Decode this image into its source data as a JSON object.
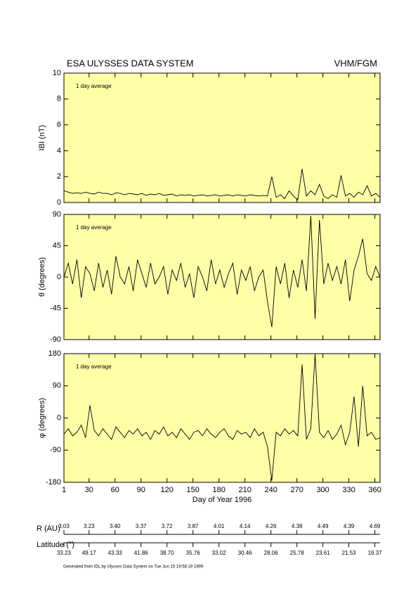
{
  "header": {
    "title": "ESA ULYSSES DATA SYSTEM",
    "instrument": "VHM/FGM"
  },
  "chart_data": [
    {
      "type": "line",
      "annotation": "1 day average",
      "ylabel": "IBI (nT)",
      "color": "#000000",
      "xlim": [
        1,
        366
      ],
      "xticks": [
        1,
        30,
        60,
        90,
        120,
        150,
        180,
        210,
        240,
        270,
        300,
        330,
        360
      ],
      "ylim": [
        0,
        10
      ],
      "yticks": [
        0,
        2,
        4,
        6,
        8,
        10
      ],
      "x": [
        1,
        6,
        11,
        16,
        21,
        26,
        31,
        36,
        41,
        46,
        51,
        56,
        61,
        66,
        71,
        76,
        81,
        86,
        91,
        96,
        101,
        106,
        111,
        116,
        121,
        126,
        131,
        136,
        141,
        146,
        151,
        156,
        161,
        166,
        171,
        176,
        181,
        186,
        191,
        196,
        201,
        206,
        211,
        216,
        221,
        226,
        231,
        236,
        241,
        246,
        251,
        256,
        261,
        266,
        271,
        276,
        281,
        286,
        291,
        296,
        301,
        306,
        311,
        316,
        321,
        326,
        331,
        336,
        341,
        346,
        351,
        356,
        361,
        366
      ],
      "values": [
        0.9,
        0.8,
        0.7,
        0.75,
        0.7,
        0.8,
        0.7,
        0.65,
        0.8,
        0.7,
        0.7,
        0.6,
        0.75,
        0.7,
        0.6,
        0.7,
        0.65,
        0.6,
        0.7,
        0.55,
        0.65,
        0.6,
        0.7,
        0.55,
        0.6,
        0.65,
        0.5,
        0.6,
        0.55,
        0.6,
        0.5,
        0.55,
        0.6,
        0.5,
        0.55,
        0.6,
        0.5,
        0.55,
        0.6,
        0.5,
        0.6,
        0.55,
        0.5,
        0.6,
        0.55,
        0.5,
        0.55,
        0.5,
        2.0,
        0.4,
        0.6,
        0.3,
        0.9,
        0.5,
        0.2,
        2.6,
        0.5,
        0.9,
        0.6,
        1.4,
        0.5,
        0.3,
        0.6,
        0.4,
        2.1,
        0.5,
        0.7,
        0.4,
        0.8,
        0.6,
        1.3,
        0.5,
        0.7,
        0.4
      ]
    },
    {
      "type": "line",
      "annotation": "1 day average",
      "ylabel": "θ (degrees)",
      "color": "#000000",
      "xlim": [
        1,
        366
      ],
      "xticks": [
        1,
        30,
        60,
        90,
        120,
        150,
        180,
        210,
        240,
        270,
        300,
        330,
        360
      ],
      "ylim": [
        -90,
        90
      ],
      "yticks": [
        -90,
        -45,
        0,
        45,
        90
      ],
      "x": [
        1,
        6,
        11,
        16,
        21,
        26,
        31,
        36,
        41,
        46,
        51,
        56,
        61,
        66,
        71,
        76,
        81,
        86,
        91,
        96,
        101,
        106,
        111,
        116,
        121,
        126,
        131,
        136,
        141,
        146,
        151,
        156,
        161,
        166,
        171,
        176,
        181,
        186,
        191,
        196,
        201,
        206,
        211,
        216,
        221,
        226,
        231,
        236,
        241,
        246,
        251,
        256,
        261,
        266,
        271,
        276,
        281,
        286,
        291,
        296,
        301,
        306,
        311,
        316,
        321,
        326,
        331,
        336,
        341,
        346,
        351,
        356,
        361,
        366
      ],
      "values": [
        0,
        20,
        -10,
        25,
        -30,
        15,
        5,
        -20,
        20,
        -15,
        10,
        -25,
        30,
        0,
        -10,
        15,
        -20,
        25,
        5,
        -15,
        20,
        -10,
        0,
        15,
        -25,
        10,
        -5,
        20,
        -15,
        5,
        -30,
        15,
        0,
        -20,
        25,
        -10,
        10,
        -15,
        5,
        20,
        -25,
        10,
        -5,
        15,
        -20,
        0,
        10,
        -35,
        -72,
        15,
        -10,
        20,
        -30,
        10,
        -15,
        25,
        -20,
        88,
        -60,
        82,
        -10,
        20,
        -5,
        15,
        -10,
        25,
        -35,
        10,
        30,
        55,
        5,
        -5,
        15,
        0
      ]
    },
    {
      "type": "line",
      "annotation": "1 day average",
      "ylabel": "φ (degrees)",
      "xlabel": "Day of Year 1996",
      "color": "#000000",
      "xlim": [
        1,
        366
      ],
      "xticks": [
        1,
        30,
        60,
        90,
        120,
        150,
        180,
        210,
        240,
        270,
        300,
        330,
        360
      ],
      "ylim": [
        -180,
        180
      ],
      "yticks": [
        -180,
        -90,
        0,
        90,
        180
      ],
      "x": [
        1,
        6,
        11,
        16,
        21,
        26,
        31,
        36,
        41,
        46,
        51,
        56,
        61,
        66,
        71,
        76,
        81,
        86,
        91,
        96,
        101,
        106,
        111,
        116,
        121,
        126,
        131,
        136,
        141,
        146,
        151,
        156,
        161,
        166,
        171,
        176,
        181,
        186,
        191,
        196,
        201,
        206,
        211,
        216,
        221,
        226,
        231,
        236,
        241,
        246,
        251,
        256,
        261,
        266,
        271,
        276,
        281,
        286,
        291,
        296,
        301,
        306,
        311,
        316,
        321,
        326,
        331,
        336,
        341,
        346,
        351,
        356,
        361,
        366
      ],
      "values": [
        -45,
        -30,
        -50,
        -40,
        -20,
        -55,
        35,
        -35,
        -50,
        -30,
        -45,
        -60,
        -25,
        -40,
        -55,
        -35,
        -45,
        -30,
        -50,
        -40,
        -60,
        -35,
        -45,
        -25,
        -50,
        -40,
        -55,
        -30,
        -45,
        -60,
        -40,
        -35,
        -50,
        -30,
        -45,
        -55,
        -40,
        -30,
        -50,
        -60,
        -35,
        -45,
        -40,
        -55,
        -30,
        -50,
        -40,
        -80,
        -175,
        -40,
        -50,
        -30,
        -45,
        -35,
        -50,
        150,
        -60,
        -30,
        180,
        -40,
        -55,
        -35,
        -60,
        -45,
        -20,
        -75,
        -40,
        60,
        -80,
        90,
        -50,
        -40,
        -60,
        -55
      ]
    }
  ],
  "ephemeris": {
    "r_label": "R (AU)",
    "r": [
      "3.03",
      "3.23",
      "3.40",
      "3.37",
      "3.72",
      "3.87",
      "4.01",
      "4.14",
      "4.26",
      "4.38",
      "4.49",
      "4.39",
      "4.69"
    ],
    "lat_label": "Latitude (°)",
    "lat": [
      "33.23",
      "49.17",
      "43.33",
      "41.86",
      "38.70",
      "35.76",
      "33.02",
      "30.46",
      "28.06",
      "25.78",
      "23.61",
      "21.53",
      "19.37"
    ]
  },
  "footer": "Generated from IDL by Ulysses Data System on Tue Jun 15 19:58:19 1999"
}
